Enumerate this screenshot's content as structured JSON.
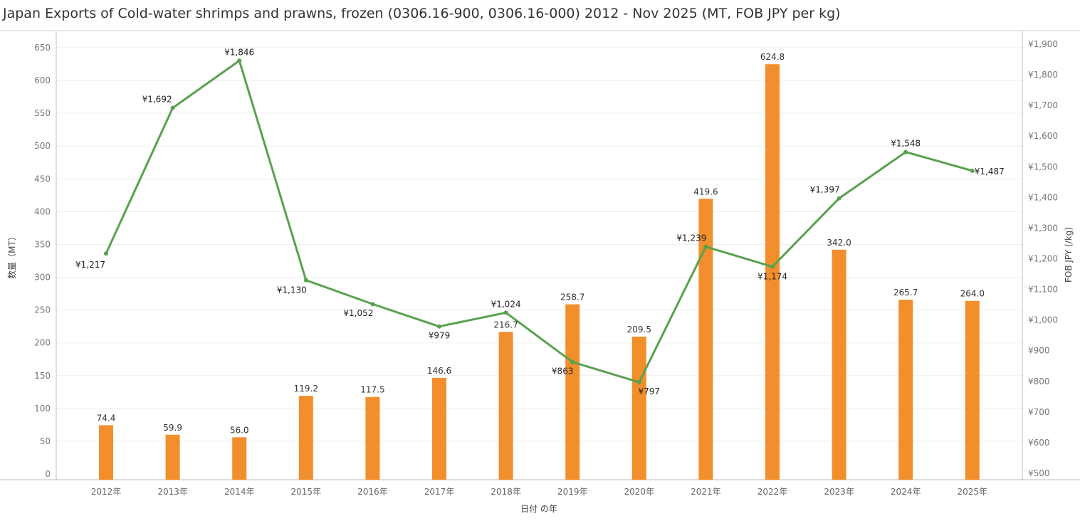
{
  "title": "Japan Exports of Cold-water shrimps and prawns, frozen (0306.16-900, 0306.16-000) 2012 - Nov 2025 (MT, FOB JPY per kg)",
  "colors": {
    "bar": "#F28E2B",
    "line": "#59A14F",
    "grid": "#EFEFEF",
    "axis": "#BBBBBB"
  },
  "chart_data": {
    "type": "bar",
    "title": "Japan Exports of Cold-water shrimps and prawns, frozen (0306.16-900, 0306.16-000) 2012 - Nov 2025 (MT, FOB JPY per kg)",
    "xlabel": "日付 の年",
    "ylabel": "数量（MT）",
    "y2label": "FOB JPY (/kg)",
    "categories": [
      "2012年",
      "2013年",
      "2014年",
      "2015年",
      "2016年",
      "2017年",
      "2018年",
      "2019年",
      "2020年",
      "2021年",
      "2022年",
      "2023年",
      "2024年",
      "2025年"
    ],
    "ylim": [
      0,
      650
    ],
    "yticks": [
      0,
      50,
      100,
      150,
      200,
      250,
      300,
      350,
      400,
      450,
      500,
      550,
      600,
      650
    ],
    "y2lim": [
      500,
      1900
    ],
    "y2ticks": [
      "¥500",
      "¥600",
      "¥700",
      "¥800",
      "¥900",
      "¥1,000",
      "¥1,100",
      "¥1,200",
      "¥1,300",
      "¥1,400",
      "¥1,500",
      "¥1,600",
      "¥1,700",
      "¥1,800",
      "¥1,900"
    ],
    "y2tick_values": [
      500,
      600,
      700,
      800,
      900,
      1000,
      1100,
      1200,
      1300,
      1400,
      1500,
      1600,
      1700,
      1800,
      1900
    ],
    "grid": true,
    "series": [
      {
        "type": "bar",
        "axis": "left",
        "values": [
          74.4,
          59.9,
          56.0,
          119.2,
          117.5,
          146.6,
          216.7,
          258.7,
          209.5,
          419.6,
          624.8,
          342.0,
          265.7,
          264.0
        ],
        "labels": [
          "74.4",
          "59.9",
          "56.0",
          "119.2",
          "117.5",
          "146.6",
          "216.7",
          "258.7",
          "209.5",
          "419.6",
          "624.8",
          "342.0",
          "265.7",
          "264.0"
        ]
      },
      {
        "type": "line",
        "axis": "right",
        "values": [
          1217,
          1692,
          1846,
          1130,
          1052,
          979,
          1024,
          863,
          797,
          1239,
          1174,
          1397,
          1548,
          1487
        ],
        "labels": [
          "¥1,217",
          "¥1,692",
          "¥1,846",
          "¥1,130",
          "¥1,052",
          "¥979",
          "¥1,024",
          "¥863",
          "¥797",
          "¥1,239",
          "¥1,174",
          "¥1,397",
          "¥1,548",
          "¥1,487"
        ]
      }
    ]
  }
}
